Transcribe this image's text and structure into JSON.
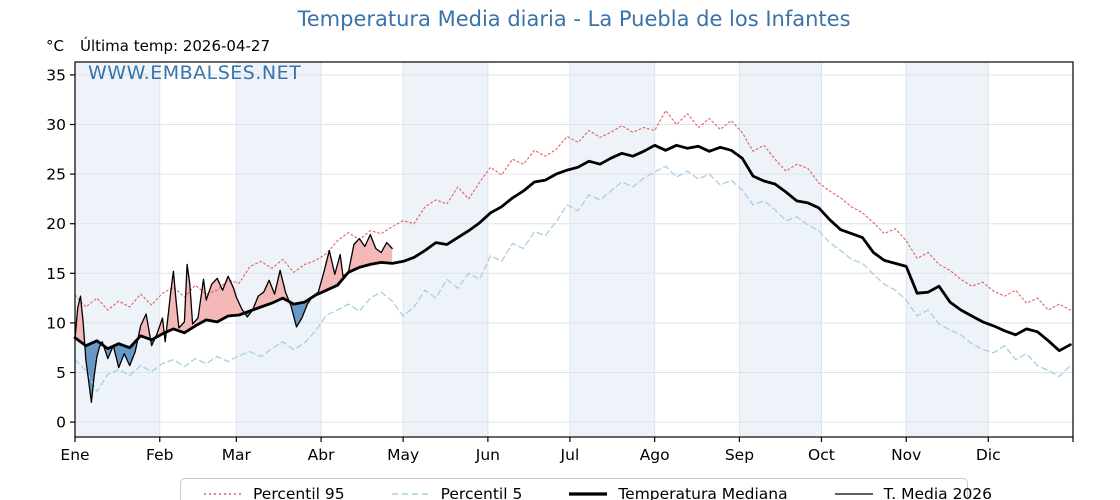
{
  "title": "Temperatura Media diaria - La Puebla de los Infantes",
  "subtitle": {
    "unit": "°C",
    "last_temp": "Última temp: 2026-04-27"
  },
  "watermark": "WWW.EMBALSES.NET",
  "legend": [
    {
      "label": "Percentil 95",
      "style": "dotted",
      "color": "#e25e5e",
      "weight": 1.4
    },
    {
      "label": "Percentil 5",
      "style": "dashed",
      "color": "#a9cfe2",
      "weight": 1.4
    },
    {
      "label": "Temperatura Mediana",
      "style": "solid",
      "color": "#000000",
      "weight": 3.2
    },
    {
      "label": "T. Media 2026",
      "style": "solid",
      "color": "#000000",
      "weight": 1.2
    }
  ],
  "chart_data": {
    "type": "line",
    "title": "Temperatura Media diaria - La Puebla de los Infantes",
    "ylabel": "°C",
    "x_unit": "day_of_year",
    "xlim": [
      0,
      365
    ],
    "ylim": [
      -1.5,
      36.3
    ],
    "yticks": [
      0,
      5,
      10,
      15,
      20,
      25,
      30,
      35
    ],
    "month_labels": [
      "Ene",
      "Feb",
      "Mar",
      "Abr",
      "May",
      "Jun",
      "Jul",
      "Ago",
      "Sep",
      "Oct",
      "Nov",
      "Dic"
    ],
    "month_start_days": [
      0,
      31,
      59,
      90,
      120,
      151,
      181,
      212,
      243,
      273,
      304,
      334,
      365
    ],
    "grid": true,
    "grid_color": "#dde3ea",
    "band_color": "#eef3f9",
    "band_months": [
      0,
      2,
      4,
      6,
      8,
      10
    ],
    "legend_position": "bottom",
    "series": [
      {
        "name": "Percentil 95",
        "color": "#e25e5e",
        "dash": "dotted",
        "width": 1.1,
        "x_start": 0,
        "x_step": 4,
        "y": [
          12.8,
          11.6,
          12.5,
          11.3,
          12.2,
          11.6,
          12.9,
          11.8,
          13.0,
          13.6,
          12.6,
          13.8,
          12.9,
          13.3,
          14.3,
          14.0,
          15.7,
          16.2,
          15.5,
          16.4,
          15.1,
          15.9,
          16.3,
          17.0,
          18.3,
          19.1,
          18.4,
          19.3,
          19.0,
          19.7,
          20.3,
          20.0,
          21.7,
          22.4,
          22.0,
          23.7,
          22.5,
          24.2,
          25.7,
          24.9,
          26.5,
          26.0,
          27.4,
          26.8,
          27.5,
          28.8,
          28.2,
          29.4,
          28.7,
          29.2,
          29.9,
          29.2,
          29.7,
          29.4,
          31.4,
          30.0,
          31.1,
          29.7,
          30.6,
          29.5,
          30.4,
          29.2,
          27.3,
          27.9,
          26.5,
          25.3,
          26.0,
          25.6,
          24.1,
          23.3,
          22.6,
          21.7,
          21.1,
          20.1,
          19.0,
          19.5,
          18.3,
          16.5,
          17.1,
          15.9,
          15.3,
          14.4,
          13.7,
          14.1,
          13.2,
          12.7,
          13.3,
          12.0,
          12.5,
          11.3,
          11.9,
          11.3
        ]
      },
      {
        "name": "Percentil 5",
        "color": "#a9cfe2",
        "dash": "dashed",
        "width": 1.3,
        "x_start": 0,
        "x_step": 4,
        "y": [
          6.3,
          5.2,
          3.1,
          4.8,
          5.3,
          4.7,
          5.7,
          5.1,
          5.9,
          6.3,
          5.6,
          6.4,
          5.9,
          6.6,
          6.1,
          6.7,
          7.1,
          6.6,
          7.4,
          8.1,
          7.3,
          8.0,
          9.2,
          10.8,
          11.3,
          11.9,
          11.2,
          12.5,
          13.1,
          12.2,
          10.7,
          11.6,
          13.3,
          12.5,
          14.4,
          13.5,
          15.0,
          14.4,
          16.8,
          16.2,
          18.0,
          17.5,
          19.2,
          18.8,
          20.2,
          21.9,
          21.3,
          22.9,
          22.4,
          23.3,
          24.2,
          23.7,
          24.6,
          25.2,
          25.8,
          24.7,
          25.3,
          24.5,
          25.0,
          23.9,
          24.4,
          23.4,
          21.9,
          22.3,
          21.4,
          20.3,
          20.7,
          19.9,
          19.3,
          18.1,
          17.3,
          16.4,
          16.0,
          14.9,
          13.9,
          13.3,
          12.3,
          10.7,
          11.3,
          9.9,
          9.3,
          8.8,
          7.9,
          7.3,
          7.0,
          7.7,
          6.3,
          6.9,
          5.7,
          5.2,
          4.6,
          5.7
        ]
      },
      {
        "name": "Temperatura Mediana",
        "color": "#000000",
        "dash": "solid",
        "width": 2.8,
        "x_start": 0,
        "x_step": 4,
        "y": [
          8.5,
          7.7,
          8.2,
          7.4,
          7.9,
          7.5,
          8.7,
          8.3,
          8.9,
          9.4,
          9.0,
          9.7,
          10.3,
          10.1,
          10.7,
          10.8,
          11.2,
          11.6,
          12.0,
          12.5,
          11.9,
          12.1,
          12.8,
          13.3,
          13.8,
          15.1,
          15.6,
          15.9,
          16.1,
          16.0,
          16.2,
          16.6,
          17.3,
          18.1,
          17.9,
          18.6,
          19.3,
          20.1,
          21.1,
          21.7,
          22.6,
          23.3,
          24.2,
          24.4,
          25.0,
          25.4,
          25.7,
          26.3,
          26.0,
          26.6,
          27.1,
          26.8,
          27.3,
          27.9,
          27.4,
          27.9,
          27.6,
          27.8,
          27.3,
          27.7,
          27.4,
          26.6,
          24.8,
          24.3,
          24.0,
          23.2,
          22.3,
          22.1,
          21.6,
          20.4,
          19.4,
          19.0,
          18.6,
          17.1,
          16.3,
          16.0,
          15.7,
          13.0,
          13.1,
          13.7,
          12.1,
          11.3,
          10.7,
          10.1,
          9.7,
          9.2,
          8.8,
          9.4,
          9.1,
          8.2,
          7.2,
          7.8
        ]
      },
      {
        "name": "T. Media 2026",
        "color": "#000000",
        "dash": "solid",
        "width": 1.3,
        "x": [
          0,
          1,
          2,
          3,
          4,
          5,
          6,
          7,
          8,
          9,
          10,
          12,
          14,
          16,
          18,
          20,
          22,
          24,
          26,
          28,
          30,
          32,
          33,
          35,
          36,
          37,
          38,
          40,
          41,
          42,
          43,
          45,
          47,
          48,
          50,
          52,
          54,
          56,
          58,
          59,
          61,
          63,
          65,
          67,
          69,
          71,
          73,
          75,
          77,
          79,
          81,
          83,
          85,
          87,
          89,
          91,
          93,
          95,
          97,
          98,
          100,
          102,
          104,
          106,
          108,
          110,
          112,
          114,
          116
        ],
        "y": [
          8.4,
          11.5,
          12.7,
          10.0,
          6.2,
          4.1,
          2.0,
          4.6,
          6.6,
          7.6,
          8.1,
          6.4,
          7.7,
          5.5,
          6.9,
          5.7,
          7.1,
          9.7,
          10.9,
          7.7,
          8.9,
          10.5,
          8.1,
          13.1,
          15.2,
          12.1,
          9.5,
          10.1,
          15.9,
          13.9,
          9.9,
          10.5,
          14.4,
          12.3,
          13.9,
          14.5,
          13.3,
          14.7,
          13.5,
          12.6,
          11.4,
          10.6,
          11.3,
          12.7,
          13.1,
          14.3,
          12.9,
          15.3,
          13.1,
          11.7,
          9.6,
          10.5,
          11.9,
          12.7,
          13.1,
          15.1,
          17.3,
          14.9,
          16.9,
          14.7,
          15.1,
          17.9,
          18.5,
          17.7,
          18.9,
          17.5,
          17.1,
          18.1,
          17.5
        ]
      }
    ],
    "fills": {
      "between": [
        "T. Media 2026",
        "Temperatura Mediana"
      ],
      "above_color": "#f3b8b8",
      "below_color": "#6699c4",
      "x_end": 116
    }
  }
}
